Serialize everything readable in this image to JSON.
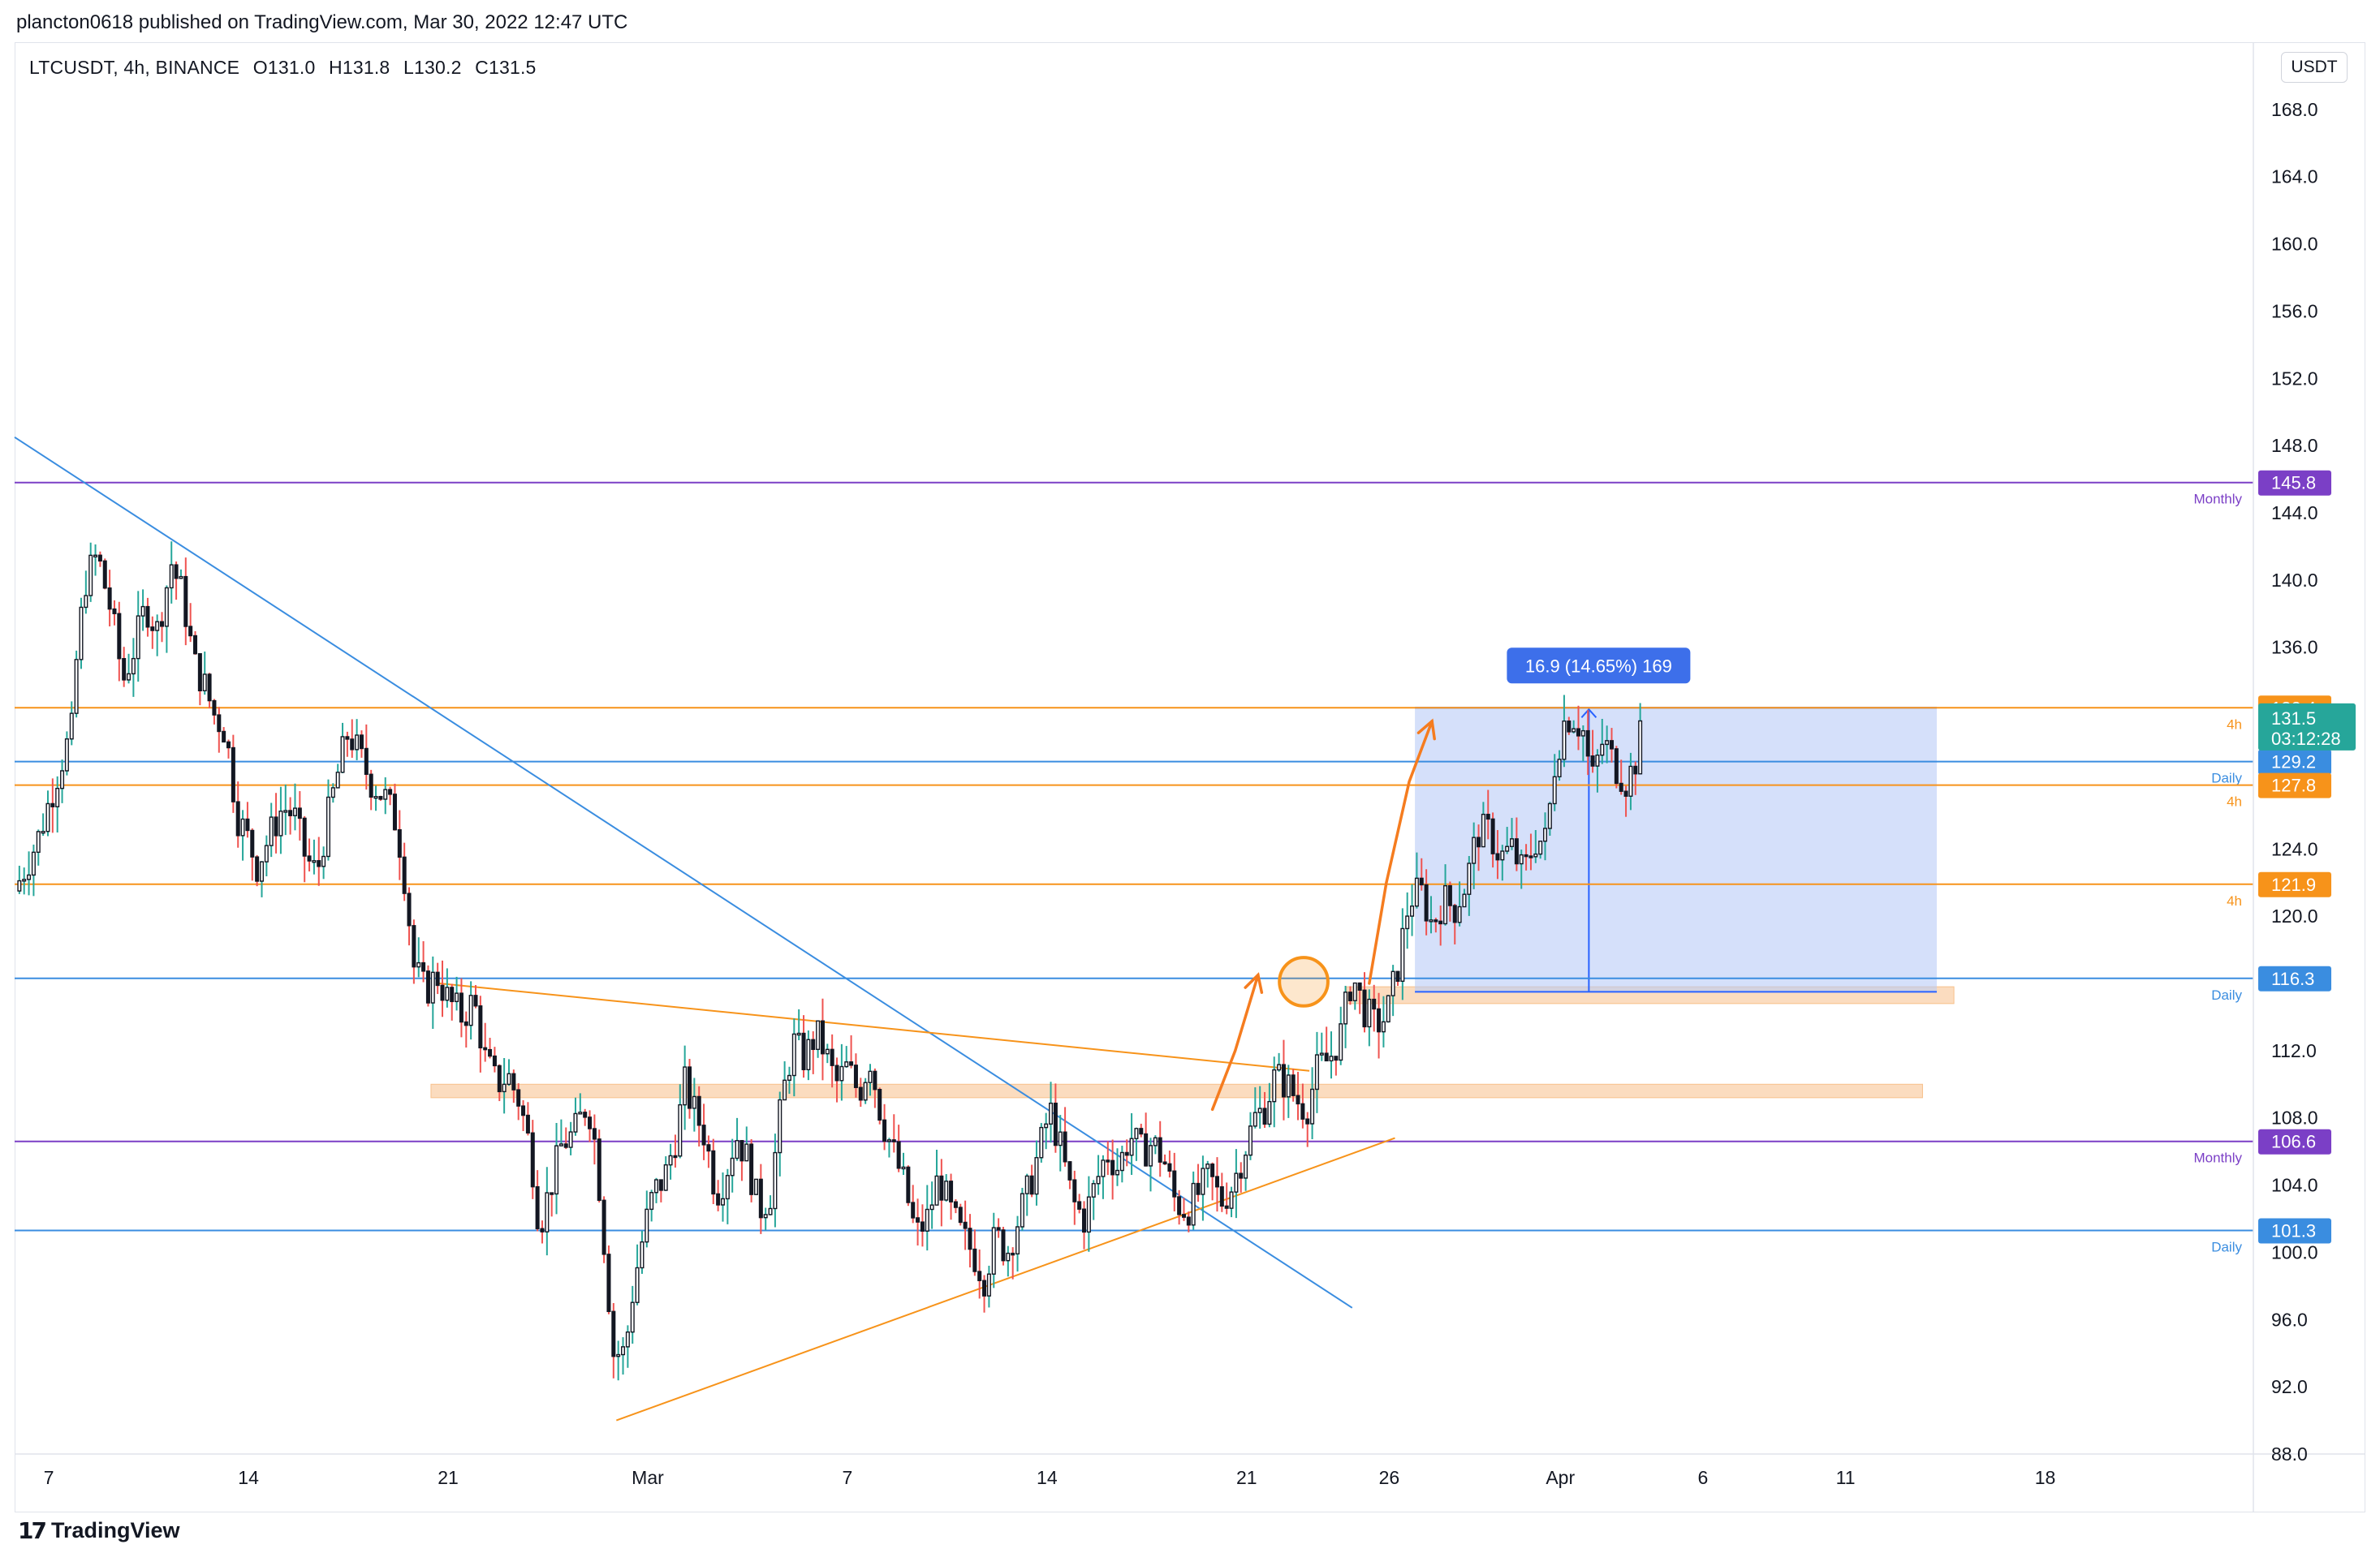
{
  "header": {
    "publisher": "plancton0618 published on TradingView.com, Mar 30, 2022 12:47 UTC"
  },
  "legend": {
    "symbol": "LTCUSDT, 4h, BINANCE",
    "open": "O131.0",
    "high": "H131.8",
    "low": "L130.2",
    "close": "C131.5"
  },
  "currency_button": "USDT",
  "footer": {
    "brand": "TradingView",
    "logo_icon": "tradingview-logo-icon"
  },
  "colors": {
    "up": "#26a69a",
    "down": "#ef5350",
    "candle_body": "#131722",
    "monthly": "#7b3fc6",
    "daily": "#3a8de0",
    "fourh": "#f7931a",
    "zone": "#f7c08a",
    "measure": "#b9cbf7",
    "measure_label": "#3d6fea",
    "current_price": "#26a69a"
  },
  "chart_data": {
    "type": "candlestick",
    "symbol": "LTCUSDT",
    "interval": "4h",
    "exchange": "BINANCE",
    "currency": "USDT",
    "ylim": [
      88,
      172
    ],
    "y_ticks": [
      "88.0",
      "92.0",
      "96.0",
      "100.0",
      "104.0",
      "108.0",
      "112.0",
      "116.0",
      "120.0",
      "124.0",
      "128.0",
      "132.0",
      "136.0",
      "140.0",
      "144.0",
      "148.0",
      "152.0",
      "156.0",
      "160.0",
      "164.0",
      "168.0"
    ],
    "x_ticks": [
      {
        "label": "7",
        "day": 0
      },
      {
        "label": "14",
        "day": 7
      },
      {
        "label": "21",
        "day": 14
      },
      {
        "label": "Mar",
        "day": 21
      },
      {
        "label": "7",
        "day": 28
      },
      {
        "label": "14",
        "day": 35
      },
      {
        "label": "21",
        "day": 42
      },
      {
        "label": "26",
        "day": 47
      },
      {
        "label": "Apr",
        "day": 53
      },
      {
        "label": "6",
        "day": 58
      },
      {
        "label": "11",
        "day": 63
      },
      {
        "label": "18",
        "day": 70
      }
    ],
    "x_range_days": [
      -1.2,
      77.3
    ],
    "price_path": [
      [
        -1.2,
        121.5
      ],
      [
        -0.4,
        124.5
      ],
      [
        0.4,
        129
      ],
      [
        0.8,
        131
      ],
      [
        1.0,
        136
      ],
      [
        1.3,
        140
      ],
      [
        1.7,
        141.5
      ],
      [
        2.2,
        138
      ],
      [
        2.6,
        134
      ],
      [
        3.0,
        136
      ],
      [
        3.4,
        138.5
      ],
      [
        3.8,
        137
      ],
      [
        4.3,
        141
      ],
      [
        4.7,
        139
      ],
      [
        5.1,
        135
      ],
      [
        5.4,
        134
      ],
      [
        5.8,
        132
      ],
      [
        6.2,
        131
      ],
      [
        6.6,
        126
      ],
      [
        7.0,
        124.5
      ],
      [
        7.3,
        123
      ],
      [
        7.8,
        125
      ],
      [
        8.2,
        126.5
      ],
      [
        8.6,
        126
      ],
      [
        9.0,
        123.5
      ],
      [
        9.4,
        122.5
      ],
      [
        9.8,
        126
      ],
      [
        10.2,
        129
      ],
      [
        10.5,
        131
      ],
      [
        10.9,
        129.5
      ],
      [
        11.3,
        128
      ],
      [
        11.8,
        127
      ],
      [
        12.2,
        125.5
      ],
      [
        12.5,
        122
      ],
      [
        12.8,
        117
      ],
      [
        13.2,
        115.5
      ],
      [
        13.6,
        116.5
      ],
      [
        14.0,
        115
      ],
      [
        14.5,
        114
      ],
      [
        14.9,
        115
      ],
      [
        15.3,
        111.5
      ],
      [
        15.7,
        110
      ],
      [
        16.1,
        110.5
      ],
      [
        16.5,
        109
      ],
      [
        16.9,
        106
      ],
      [
        17.2,
        101.5
      ],
      [
        17.6,
        104
      ],
      [
        18.0,
        106.5
      ],
      [
        18.4,
        107
      ],
      [
        18.9,
        109
      ],
      [
        19.2,
        106
      ],
      [
        19.5,
        100
      ],
      [
        19.8,
        94
      ],
      [
        20.2,
        94
      ],
      [
        20.5,
        98
      ],
      [
        20.9,
        101.5
      ],
      [
        21.2,
        103.5
      ],
      [
        21.6,
        104.5
      ],
      [
        22.0,
        107
      ],
      [
        22.3,
        110
      ],
      [
        22.6,
        108.5
      ],
      [
        23.0,
        107
      ],
      [
        23.4,
        103.5
      ],
      [
        23.7,
        104.5
      ],
      [
        24.1,
        107
      ],
      [
        24.5,
        105.5
      ],
      [
        24.9,
        102.5
      ],
      [
        25.3,
        103.5
      ],
      [
        25.7,
        109
      ],
      [
        26.1,
        112.5
      ],
      [
        26.5,
        111.5
      ],
      [
        26.9,
        113
      ],
      [
        27.2,
        112
      ],
      [
        27.6,
        110
      ],
      [
        28.0,
        111
      ],
      [
        28.4,
        109.5
      ],
      [
        28.8,
        111.5
      ],
      [
        29.2,
        108
      ],
      [
        29.6,
        106
      ],
      [
        30.0,
        104
      ],
      [
        30.4,
        101
      ],
      [
        30.8,
        102
      ],
      [
        31.2,
        104.5
      ],
      [
        31.6,
        102.5
      ],
      [
        32.0,
        101
      ],
      [
        32.4,
        100
      ],
      [
        32.8,
        98.5
      ],
      [
        33.2,
        101
      ],
      [
        33.6,
        100
      ],
      [
        34.0,
        102
      ],
      [
        34.4,
        104
      ],
      [
        34.8,
        106.5
      ],
      [
        35.1,
        108.5
      ],
      [
        35.5,
        106
      ],
      [
        35.9,
        103
      ],
      [
        36.3,
        102
      ],
      [
        36.7,
        104
      ],
      [
        37.1,
        106
      ],
      [
        37.5,
        105
      ],
      [
        37.9,
        107
      ],
      [
        38.3,
        106
      ],
      [
        38.7,
        106.5
      ],
      [
        39.1,
        105.5
      ],
      [
        39.5,
        103
      ],
      [
        39.9,
        102.5
      ],
      [
        40.3,
        103.5
      ],
      [
        40.7,
        104.5
      ],
      [
        41.1,
        103
      ],
      [
        41.5,
        104
      ],
      [
        41.9,
        106
      ],
      [
        42.3,
        108
      ],
      [
        42.6,
        108.5
      ],
      [
        43.0,
        110.5
      ],
      [
        43.4,
        110
      ],
      [
        43.8,
        109
      ],
      [
        44.1,
        108.5
      ],
      [
        44.5,
        111
      ],
      [
        44.9,
        111.5
      ],
      [
        45.3,
        113
      ],
      [
        45.7,
        116.5
      ],
      [
        46.1,
        114.5
      ],
      [
        46.5,
        113.5
      ],
      [
        46.9,
        114
      ],
      [
        47.3,
        117
      ],
      [
        47.7,
        121
      ],
      [
        48.1,
        121.5
      ],
      [
        48.5,
        119.5
      ],
      [
        48.9,
        121
      ],
      [
        49.3,
        120.5
      ],
      [
        49.7,
        122
      ],
      [
        50.1,
        125
      ],
      [
        50.5,
        125
      ],
      [
        50.9,
        123.5
      ],
      [
        51.3,
        124
      ],
      [
        51.7,
        122.5
      ],
      [
        52.1,
        124.5
      ],
      [
        52.5,
        124.5
      ],
      [
        52.8,
        129
      ],
      [
        53.1,
        131.5
      ],
      [
        53.4,
        132
      ],
      [
        53.8,
        131
      ],
      [
        54.1,
        128
      ],
      [
        54.5,
        130.5
      ],
      [
        54.9,
        129
      ],
      [
        55.3,
        128
      ],
      [
        55.6,
        129
      ],
      [
        55.9,
        131.5
      ]
    ],
    "horizontal_levels": [
      {
        "price": 145.8,
        "label": "145.8",
        "timeframe": "Monthly",
        "kind": "monthly"
      },
      {
        "price": 132.4,
        "label": "132.4",
        "timeframe": "4h",
        "kind": "fourh"
      },
      {
        "price": 129.2,
        "label": "129.2",
        "timeframe": "Daily",
        "kind": "daily"
      },
      {
        "price": 127.8,
        "label": "127.8",
        "timeframe": "4h",
        "kind": "fourh"
      },
      {
        "price": 121.9,
        "label": "121.9",
        "timeframe": "4h",
        "kind": "fourh"
      },
      {
        "price": 116.3,
        "label": "116.3",
        "timeframe": "Daily",
        "kind": "daily"
      },
      {
        "price": 106.6,
        "label": "106.6",
        "timeframe": "Monthly",
        "kind": "monthly"
      },
      {
        "price": 101.3,
        "label": "101.3",
        "timeframe": "Daily",
        "kind": "daily"
      }
    ],
    "current_price": {
      "price": 131.5,
      "label": "131.5",
      "countdown": "03:12:28"
    },
    "zones": [
      {
        "from_day": 45.5,
        "to_day": 66.8,
        "low": 114.8,
        "high": 115.8
      },
      {
        "from_day": 13.4,
        "to_day": 65.7,
        "low": 109.2,
        "high": 110.0
      }
    ],
    "trendlines": [
      {
        "kind": "daily",
        "from": [
          -1.2,
          148.5
        ],
        "to": [
          45.7,
          96.7
        ]
      },
      {
        "kind": "fourh",
        "from": [
          19.9,
          90.0
        ],
        "to": [
          47.2,
          106.8
        ]
      },
      {
        "kind": "fourh",
        "from": [
          13.7,
          116.0
        ],
        "to": [
          44.2,
          110.8
        ]
      }
    ],
    "projection_arrows": [
      {
        "points": [
          [
            40.8,
            108.5
          ],
          [
            41.6,
            112
          ],
          [
            42.4,
            116.5
          ]
        ]
      },
      {
        "points": [
          [
            46.3,
            116
          ],
          [
            46.9,
            122
          ],
          [
            47.7,
            128
          ],
          [
            48.5,
            131.6
          ]
        ]
      }
    ],
    "highlight_circle": {
      "day": 44.0,
      "price": 116.1,
      "radius_days": 0.85
    },
    "measure": {
      "from_day": 47.9,
      "to_day": 66.2,
      "low": 115.5,
      "high": 132.4,
      "arrow_day": 54.0,
      "label": "16.9 (14.65%) 169"
    }
  }
}
